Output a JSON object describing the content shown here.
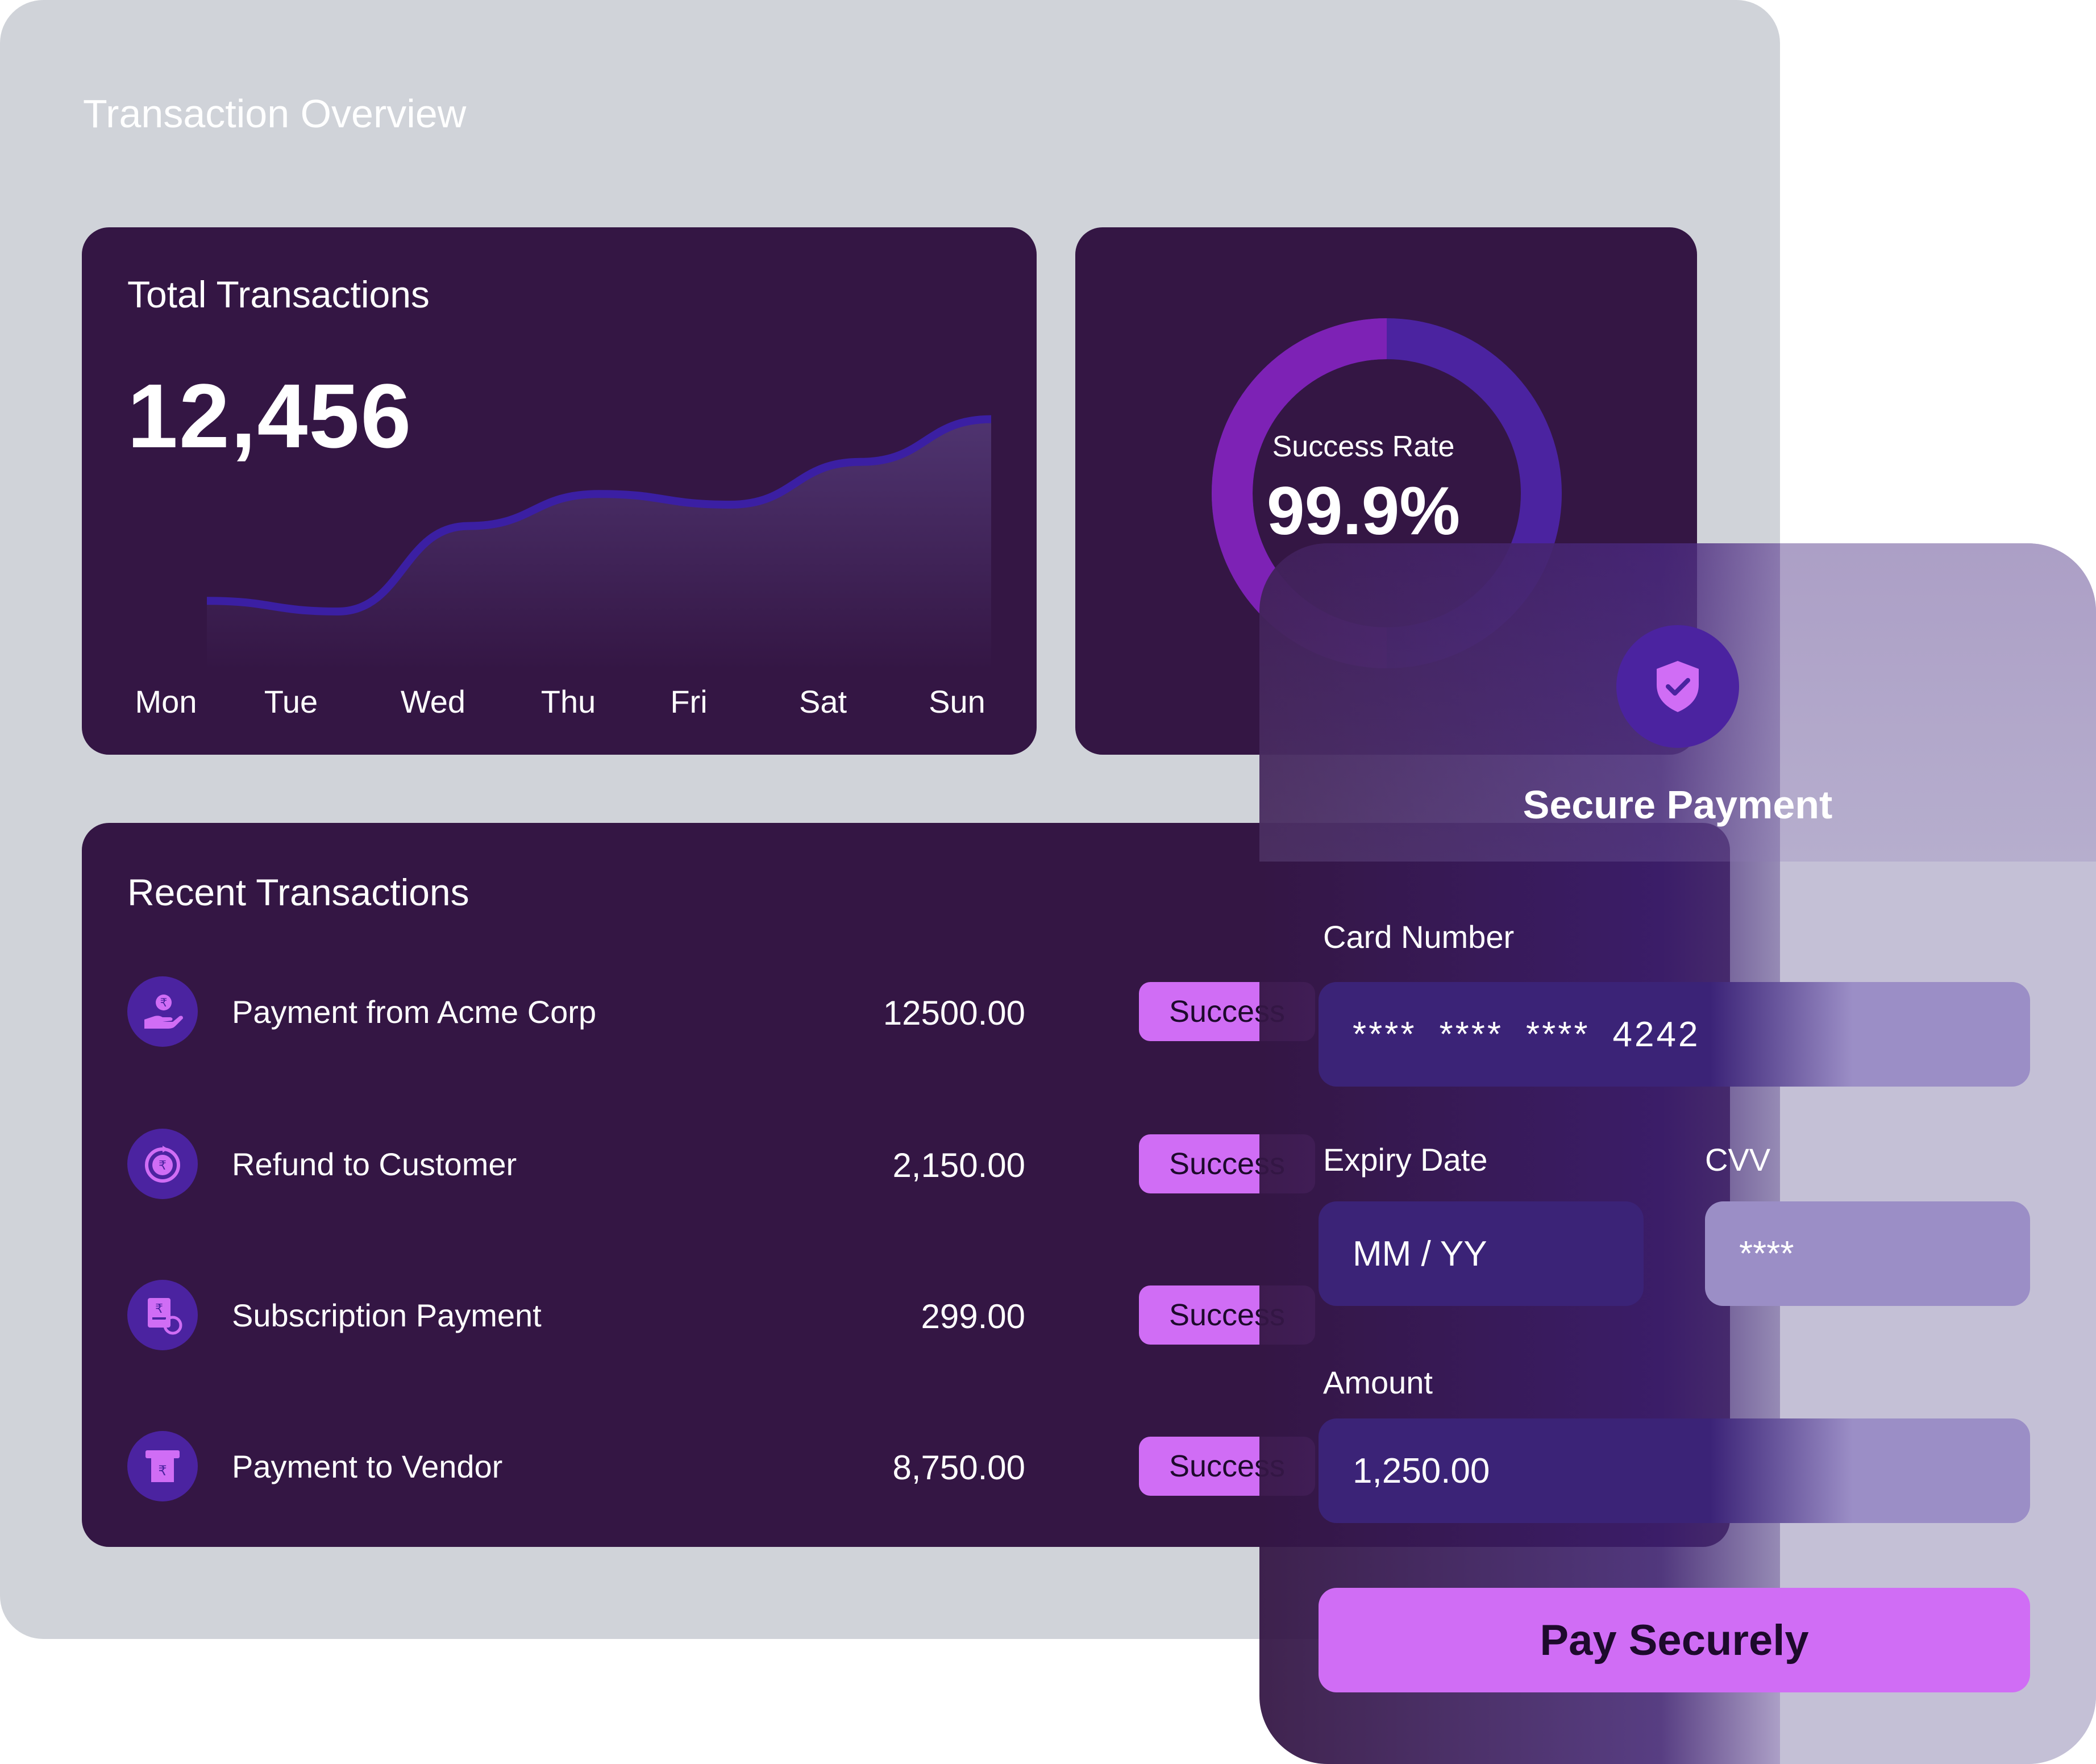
{
  "overview": {
    "title": "Transaction Overview"
  },
  "total_card": {
    "title": "Total Transactions",
    "value": "12,456"
  },
  "chart_data": {
    "type": "area",
    "categories": [
      "Mon",
      "Tue",
      "Wed",
      "Thu",
      "Fri",
      "Sat",
      "Sun"
    ],
    "series": [
      {
        "values": [
          1.2,
          1.0,
          2.6,
          3.2,
          3.0,
          3.8,
          4.6
        ]
      }
    ],
    "title": "",
    "xlabel": "",
    "ylabel": "",
    "ylim": [
      0,
      5
    ],
    "grid": false,
    "colors": {
      "line": "#3b1fa3",
      "fill_top": "#4f3470",
      "fill_bottom": "#341644"
    }
  },
  "rate_card": {
    "caption": "Success Rate",
    "value": "99.9%",
    "rate_fraction": 0.999,
    "ring_colors": [
      "#7d22b5",
      "#4b23a0"
    ]
  },
  "recent": {
    "title": "Recent Transactions",
    "items": [
      {
        "name": "Payment from Acme Corp",
        "amount": "12500.00",
        "status": "Success",
        "icon": "rupee-hand-icon"
      },
      {
        "name": "Refund to Customer",
        "amount": "2,150.00",
        "status": "Success",
        "icon": "rupee-refund-icon"
      },
      {
        "name": "Subscription Payment",
        "amount": "299.00",
        "status": "Success",
        "icon": "rupee-invoice-icon"
      },
      {
        "name": "Payment to Vendor",
        "amount": "8,750.00",
        "status": "Success",
        "icon": "rupee-atm-icon"
      }
    ]
  },
  "payment": {
    "icon": "shield-check-icon",
    "title": "Secure Payment",
    "card_label": "Card Number",
    "card_groups": [
      "****",
      "****",
      "****",
      "4242"
    ],
    "expiry_label": "Expiry Date",
    "expiry_placeholder": "MM / YY",
    "cvv_label": "CVV",
    "cvv_value": "****",
    "amount_label": "Amount",
    "amount_value": "1,250.00",
    "button_label": "Pay Securely"
  },
  "colors": {
    "card_bg": "#341644",
    "backdrop": "#d0d3d9",
    "accent": "#d06df5",
    "icon_bg": "#4b23a0"
  }
}
